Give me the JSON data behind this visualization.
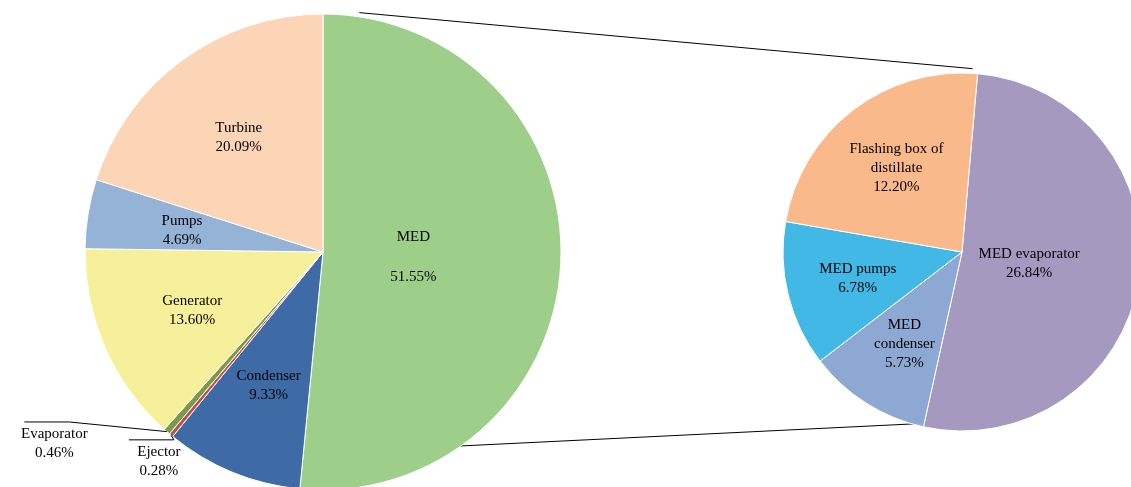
{
  "chart_data": [
    {
      "type": "pie",
      "categories": [
        "MED",
        "Condenser",
        "Ejector",
        "Evaporator",
        "Generator",
        "Pumps",
        "Turbine"
      ],
      "values": [
        51.55,
        9.33,
        0.28,
        0.46,
        13.6,
        4.69,
        20.09
      ],
      "colors": [
        "#9dcf8b",
        "#3e6aa6",
        "#c0504d",
        "#7a9a4a",
        "#f7f09a",
        "#95b3d7",
        "#fbd5b5"
      ],
      "value_labels": [
        "51.55%",
        "9.33%",
        "0.28%",
        "0.46%",
        "13.60%",
        "4.69%",
        "20.09%"
      ]
    },
    {
      "type": "pie",
      "categories": [
        "MED evaporator",
        "MED condenser",
        "MED pumps",
        "Flashing box of distillate"
      ],
      "values": [
        26.84,
        5.73,
        6.78,
        12.2
      ],
      "colors": [
        "#a599c0",
        "#8ea8d4",
        "#42b8e6",
        "#fab98a"
      ],
      "value_labels": [
        "26.84%",
        "5.73%",
        "6.78%",
        "12.20%"
      ]
    }
  ]
}
